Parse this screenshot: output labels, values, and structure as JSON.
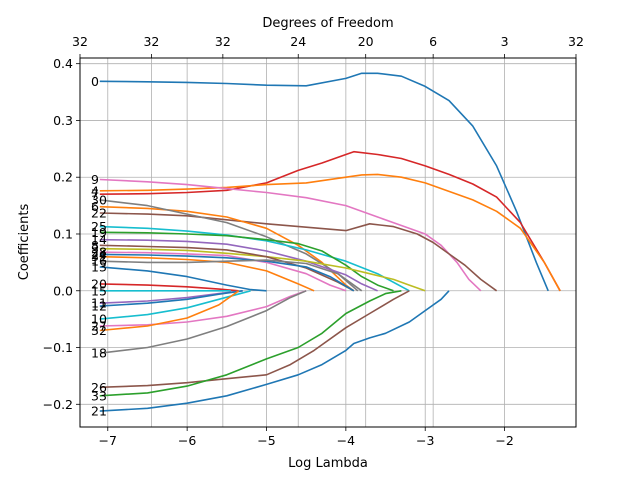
{
  "chart_data": {
    "type": "line",
    "title": "",
    "xlabel": "Log Lambda",
    "ylabel": "Coefficients",
    "top_axis_label": "Degrees of Freedom",
    "xlim": [
      -7.35,
      -1.1
    ],
    "ylim": [
      -0.24,
      0.41
    ],
    "xticks": [
      -7,
      -6,
      -5,
      -4,
      -3,
      -2
    ],
    "xtick_labels": [
      "−7",
      "−6",
      "−5",
      "−4",
      "−3",
      "−2"
    ],
    "yticks": [
      -0.2,
      -0.1,
      0.0,
      0.1,
      0.2,
      0.3,
      0.4
    ],
    "ytick_labels": [
      "−0.2",
      "−0.1",
      "0.0",
      "0.1",
      "0.2",
      "0.3",
      "0.4"
    ],
    "top_ticks": [
      -7.35,
      -6.45,
      -5.55,
      -4.6,
      -3.75,
      -2.9,
      -2.0,
      -1.1
    ],
    "top_tick_labels": [
      "32",
      "32",
      "32",
      "24",
      "20",
      "6",
      "3",
      "32"
    ],
    "grid": true,
    "series": [
      {
        "name": "0",
        "color": "#1f77b4",
        "x": [
          -7.1,
          -6.5,
          -6.0,
          -5.5,
          -5.0,
          -4.5,
          -4.0,
          -3.8,
          -3.6,
          -3.3,
          -3.0,
          -2.7,
          -2.4,
          -2.1,
          -1.85,
          -1.6,
          -1.45
        ],
        "y": [
          0.369,
          0.368,
          0.367,
          0.365,
          0.362,
          0.361,
          0.374,
          0.383,
          0.383,
          0.378,
          0.36,
          0.335,
          0.29,
          0.22,
          0.14,
          0.05,
          0.0
        ]
      },
      {
        "name": "7",
        "color": "#d62728",
        "x": [
          -7.1,
          -6.5,
          -6.0,
          -5.5,
          -5.0,
          -4.6,
          -4.3,
          -4.0,
          -3.9,
          -3.6,
          -3.3,
          -3.0,
          -2.7,
          -2.4,
          -2.1,
          -1.8,
          -1.5,
          -1.3
        ],
        "y": [
          0.17,
          0.171,
          0.173,
          0.177,
          0.19,
          0.212,
          0.225,
          0.24,
          0.245,
          0.24,
          0.233,
          0.22,
          0.205,
          0.188,
          0.165,
          0.12,
          0.05,
          0.0
        ]
      },
      {
        "name": "4",
        "color": "#ff7f0e",
        "x": [
          -7.1,
          -6.5,
          -6.0,
          -5.5,
          -5.0,
          -4.5,
          -4.0,
          -3.8,
          -3.6,
          -3.3,
          -3.0,
          -2.7,
          -2.4,
          -2.1,
          -1.8,
          -1.5,
          -1.3
        ],
        "y": [
          0.176,
          0.177,
          0.179,
          0.182,
          0.187,
          0.19,
          0.2,
          0.204,
          0.205,
          0.2,
          0.19,
          0.175,
          0.16,
          0.14,
          0.11,
          0.05,
          0.0
        ]
      },
      {
        "name": "9",
        "color": "#e377c2",
        "x": [
          -7.1,
          -6.5,
          -6.0,
          -5.5,
          -5.0,
          -4.5,
          -4.0,
          -3.6,
          -3.3,
          -3.0,
          -2.8,
          -2.6,
          -2.45,
          -2.3
        ],
        "y": [
          0.196,
          0.192,
          0.187,
          0.18,
          0.173,
          0.164,
          0.15,
          0.13,
          0.115,
          0.1,
          0.08,
          0.05,
          0.02,
          0.0
        ]
      },
      {
        "name": "22",
        "color": "#8c564b",
        "x": [
          -7.1,
          -6.5,
          -6.0,
          -5.5,
          -5.0,
          -4.5,
          -4.0,
          -3.7,
          -3.4,
          -3.1,
          -2.9,
          -2.7,
          -2.5,
          -2.3,
          -2.1
        ],
        "y": [
          0.137,
          0.135,
          0.132,
          0.125,
          0.118,
          0.112,
          0.106,
          0.118,
          0.113,
          0.1,
          0.085,
          0.065,
          0.045,
          0.02,
          0.0
        ]
      },
      {
        "name": "6",
        "color": "#ff7f0e",
        "x": [
          -7.1,
          -6.5,
          -6.0,
          -5.5,
          -5.0,
          -4.6,
          -4.3,
          -4.0,
          -3.9
        ],
        "y": [
          0.148,
          0.145,
          0.14,
          0.13,
          0.11,
          0.08,
          0.05,
          0.01,
          0.0
        ]
      },
      {
        "name": "30",
        "color": "#7f7f7f",
        "x": [
          -7.1,
          -6.5,
          -6.0,
          -5.5,
          -5.0,
          -4.5,
          -4.1,
          -3.85
        ],
        "y": [
          0.16,
          0.15,
          0.135,
          0.12,
          0.095,
          0.065,
          0.03,
          0.0
        ]
      },
      {
        "name": "25",
        "color": "#17becf",
        "x": [
          -7.1,
          -6.5,
          -6.0,
          -5.5,
          -5.0,
          -4.5,
          -4.0,
          -3.6,
          -3.2
        ],
        "y": [
          0.113,
          0.11,
          0.105,
          0.098,
          0.088,
          0.072,
          0.052,
          0.03,
          0.0
        ]
      },
      {
        "name": "19",
        "color": "#2ca02c",
        "x": [
          -7.1,
          -6.5,
          -6.0,
          -5.5,
          -5.0,
          -4.6,
          -4.3,
          -4.0,
          -3.8,
          -3.6,
          -3.4
        ],
        "y": [
          0.103,
          0.102,
          0.1,
          0.097,
          0.09,
          0.083,
          0.07,
          0.045,
          0.025,
          0.01,
          0.0
        ]
      },
      {
        "name": "14",
        "color": "#9467bd",
        "x": [
          -7.1,
          -6.5,
          -6.0,
          -5.5,
          -5.0,
          -4.5,
          -4.0,
          -3.8,
          -3.6
        ],
        "y": [
          0.09,
          0.089,
          0.087,
          0.082,
          0.07,
          0.052,
          0.028,
          0.012,
          0.0
        ]
      },
      {
        "name": "3",
        "color": "#bcbd22",
        "x": [
          -7.1,
          -6.5,
          -6.0,
          -5.5,
          -5.0,
          -4.5,
          -4.0,
          -3.7,
          -3.4,
          -3.2,
          -3.0
        ],
        "y": [
          0.074,
          0.073,
          0.071,
          0.066,
          0.06,
          0.052,
          0.04,
          0.03,
          0.02,
          0.01,
          0.0
        ]
      },
      {
        "name": "8",
        "color": "#8c564b",
        "x": [
          -7.1,
          -6.5,
          -6.0,
          -5.5,
          -5.0,
          -4.5,
          -4.1,
          -3.9
        ],
        "y": [
          0.08,
          0.078,
          0.076,
          0.072,
          0.06,
          0.04,
          0.015,
          0.0
        ]
      },
      {
        "name": "28",
        "color": "#e377c2",
        "x": [
          -7.1,
          -6.5,
          -6.0,
          -5.5,
          -5.0,
          -4.5,
          -4.2,
          -4.0
        ],
        "y": [
          0.068,
          0.067,
          0.065,
          0.062,
          0.05,
          0.03,
          0.01,
          0.0
        ]
      },
      {
        "name": "24",
        "color": "#1f77b4",
        "x": [
          -7.1,
          -6.5,
          -6.0,
          -5.5,
          -5.0,
          -4.5,
          -4.2,
          -3.9
        ],
        "y": [
          0.064,
          0.063,
          0.061,
          0.058,
          0.052,
          0.042,
          0.025,
          0.0
        ]
      },
      {
        "name": "31",
        "color": "#ff7f0e",
        "x": [
          -7.1,
          -6.5,
          -6.0,
          -5.5,
          -5.0,
          -4.6,
          -4.4
        ],
        "y": [
          0.06,
          0.058,
          0.055,
          0.05,
          0.035,
          0.012,
          0.0
        ]
      },
      {
        "name": "16",
        "color": "#7f7f7f",
        "x": [
          -7.1,
          -6.5,
          -6.0,
          -5.5,
          -5.0,
          -4.5,
          -4.1,
          -3.8
        ],
        "y": [
          0.052,
          0.05,
          0.05,
          0.052,
          0.054,
          0.048,
          0.03,
          0.0
        ]
      },
      {
        "name": "13",
        "color": "#1f77b4",
        "x": [
          -7.1,
          -6.5,
          -6.0,
          -5.5,
          -5.2,
          -5.0
        ],
        "y": [
          0.042,
          0.035,
          0.025,
          0.01,
          0.002,
          0.0
        ]
      },
      {
        "name": "20",
        "color": "#d62728",
        "x": [
          -7.1,
          -6.5,
          -6.0,
          -5.6,
          -5.35
        ],
        "y": [
          0.012,
          0.01,
          0.007,
          0.003,
          0.0
        ]
      },
      {
        "name": "15",
        "color": "#17becf",
        "x": [
          -7.1,
          -6.5,
          -6.0,
          -5.7,
          -5.45
        ],
        "y": [
          0.0,
          0.0,
          0.0,
          0.0,
          0.0
        ]
      },
      {
        "name": "11",
        "color": "#9467bd",
        "x": [
          -7.1,
          -6.5,
          -6.0,
          -5.6,
          -5.3
        ],
        "y": [
          -0.022,
          -0.018,
          -0.012,
          -0.005,
          0.0
        ]
      },
      {
        "name": "12",
        "color": "#1f77b4",
        "x": [
          -7.1,
          -6.5,
          -6.0,
          -5.6,
          -5.3
        ],
        "y": [
          -0.027,
          -0.022,
          -0.015,
          -0.006,
          0.0
        ]
      },
      {
        "name": "10",
        "color": "#17becf",
        "x": [
          -7.1,
          -6.5,
          -6.0,
          -5.6,
          -5.2
        ],
        "y": [
          -0.05,
          -0.042,
          -0.03,
          -0.015,
          0.0
        ]
      },
      {
        "name": "27",
        "color": "#e377c2",
        "x": [
          -7.1,
          -6.5,
          -6.0,
          -5.5,
          -5.0,
          -4.7,
          -4.5
        ],
        "y": [
          -0.062,
          -0.06,
          -0.055,
          -0.045,
          -0.028,
          -0.01,
          0.0
        ]
      },
      {
        "name": "32",
        "color": "#ff7f0e",
        "x": [
          -7.1,
          -6.5,
          -6.0,
          -5.6,
          -5.35
        ],
        "y": [
          -0.07,
          -0.062,
          -0.048,
          -0.025,
          0.0
        ]
      },
      {
        "name": "18",
        "color": "#7f7f7f",
        "x": [
          -7.1,
          -6.5,
          -6.0,
          -5.5,
          -5.0,
          -4.7,
          -4.5
        ],
        "y": [
          -0.11,
          -0.1,
          -0.085,
          -0.063,
          -0.035,
          -0.012,
          0.0
        ]
      },
      {
        "name": "26",
        "color": "#8c564b",
        "x": [
          -7.1,
          -6.5,
          -6.0,
          -5.5,
          -5.0,
          -4.7,
          -4.4,
          -4.0,
          -3.7,
          -3.4,
          -3.2
        ],
        "y": [
          -0.17,
          -0.167,
          -0.162,
          -0.155,
          -0.148,
          -0.13,
          -0.105,
          -0.065,
          -0.04,
          -0.015,
          0.0
        ]
      },
      {
        "name": "33",
        "color": "#2ca02c",
        "x": [
          -7.1,
          -6.5,
          -6.0,
          -5.5,
          -5.0,
          -4.6,
          -4.3,
          -4.0,
          -3.7,
          -3.5,
          -3.3
        ],
        "y": [
          -0.185,
          -0.18,
          -0.168,
          -0.148,
          -0.12,
          -0.1,
          -0.075,
          -0.04,
          -0.018,
          -0.005,
          0.0
        ]
      },
      {
        "name": "21",
        "color": "#1f77b4",
        "x": [
          -7.1,
          -6.5,
          -6.0,
          -5.5,
          -5.0,
          -4.6,
          -4.3,
          -4.0,
          -3.9,
          -3.7,
          -3.5,
          -3.2,
          -3.0,
          -2.8,
          -2.7
        ],
        "y": [
          -0.212,
          -0.207,
          -0.198,
          -0.185,
          -0.165,
          -0.148,
          -0.13,
          -0.105,
          -0.093,
          -0.083,
          -0.075,
          -0.055,
          -0.035,
          -0.015,
          0.0
        ]
      }
    ]
  }
}
